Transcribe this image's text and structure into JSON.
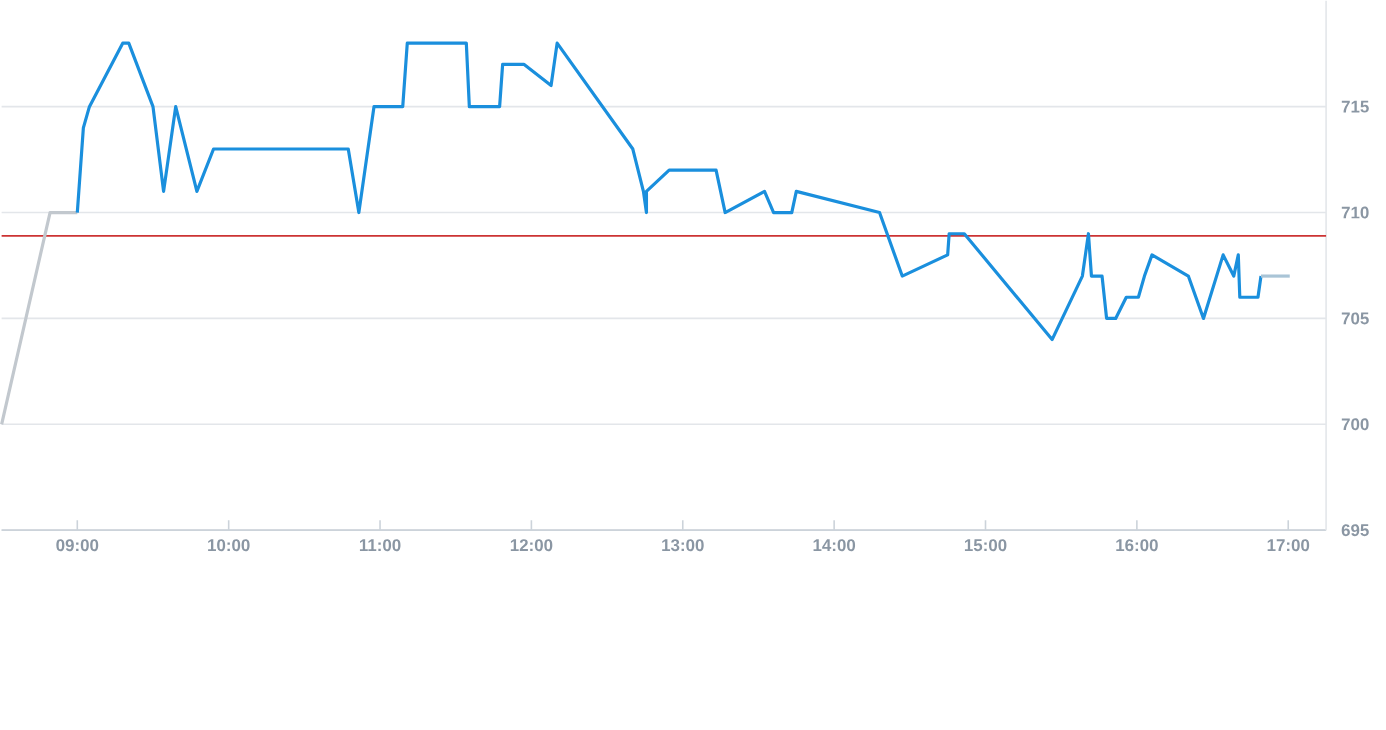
{
  "chart_data": {
    "type": "line",
    "xlim": [
      8.5,
      17.25
    ],
    "ylim": [
      695,
      720
    ],
    "xticks": [
      {
        "value": 9,
        "label": "09:00"
      },
      {
        "value": 10,
        "label": "10:00"
      },
      {
        "value": 11,
        "label": "11:00"
      },
      {
        "value": 12,
        "label": "12:00"
      },
      {
        "value": 13,
        "label": "13:00"
      },
      {
        "value": 14,
        "label": "14:00"
      },
      {
        "value": 15,
        "label": "15:00"
      },
      {
        "value": 16,
        "label": "16:00"
      },
      {
        "value": 17,
        "label": "17:00"
      }
    ],
    "yticks": [
      695,
      700,
      705,
      710,
      715
    ],
    "grid": "y",
    "ref_lines": [
      {
        "axis": "y",
        "value": 708.9,
        "color": "#cc3333"
      }
    ],
    "series": [
      {
        "color": "#c2c8ce",
        "x": [
          8.5,
          8.82,
          9.0
        ],
        "values": [
          700,
          710,
          710
        ]
      },
      {
        "color": "#1a8fdd",
        "x": [
          9.0,
          9.04,
          9.08,
          9.3,
          9.34,
          9.5,
          9.57,
          9.65,
          9.79,
          9.9,
          10.79,
          10.86,
          10.9,
          10.96,
          11.15,
          11.18,
          11.57,
          11.59,
          11.79,
          11.81,
          11.95,
          12.13,
          12.17,
          12.67,
          12.74,
          12.76,
          12.76,
          12.91,
          13.22,
          13.28,
          13.54,
          13.6,
          13.72,
          13.75,
          14.3,
          14.45,
          14.75,
          14.76,
          14.86,
          15.44,
          15.64,
          15.68,
          15.7,
          15.77,
          15.8,
          15.86,
          15.93,
          16.01,
          16.05,
          16.1,
          16.34,
          16.44,
          16.57,
          16.64,
          16.67,
          16.68,
          16.8,
          16.82
        ],
        "values": [
          710,
          714,
          715,
          718,
          718,
          715,
          711,
          715,
          711,
          713,
          713,
          710,
          712,
          715,
          715,
          718,
          718,
          715,
          715,
          717,
          717,
          716,
          718,
          713,
          711,
          710,
          711,
          712,
          712,
          710,
          711,
          710,
          710,
          711,
          710,
          707,
          708,
          709,
          709,
          704,
          707,
          709,
          707,
          707,
          705,
          705,
          706,
          706,
          707,
          708,
          707,
          705,
          708,
          707,
          708,
          706,
          706,
          707
        ]
      },
      {
        "color": "#a9c4d6",
        "x": [
          16.82,
          17.01
        ],
        "values": [
          707,
          707
        ]
      }
    ]
  }
}
